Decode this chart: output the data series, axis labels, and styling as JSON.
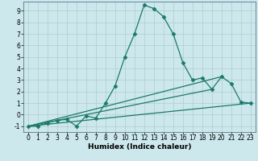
{
  "xlabel": "Humidex (Indice chaleur)",
  "line_color": "#1a7a6a",
  "bg_color": "#cce8ec",
  "grid_color": "#b0cccc",
  "lines": [
    {
      "x": [
        0,
        1,
        2,
        3,
        4,
        5,
        6,
        7,
        8,
        9,
        10,
        11,
        12,
        13,
        14,
        15,
        16,
        17,
        18,
        19,
        20,
        21,
        22,
        23
      ],
      "y": [
        -1,
        -1,
        -0.7,
        -0.5,
        -0.4,
        -1.0,
        -0.1,
        -0.3,
        1.0,
        2.5,
        5.0,
        7.0,
        9.5,
        9.2,
        8.5,
        7.0,
        4.5,
        3.0,
        3.2,
        2.2,
        3.3,
        2.7,
        1.1,
        1.0
      ],
      "has_markers": true
    },
    {
      "x": [
        0,
        23
      ],
      "y": [
        -1,
        1.0
      ],
      "has_markers": false
    },
    {
      "x": [
        0,
        19
      ],
      "y": [
        -1,
        2.2
      ],
      "has_markers": false
    },
    {
      "x": [
        0,
        20
      ],
      "y": [
        -1,
        3.3
      ],
      "has_markers": false
    }
  ],
  "xlim": [
    -0.5,
    23.5
  ],
  "ylim": [
    -1.5,
    9.8
  ],
  "yticks": [
    -1,
    0,
    1,
    2,
    3,
    4,
    5,
    6,
    7,
    8,
    9
  ],
  "xticks": [
    0,
    1,
    2,
    3,
    4,
    5,
    6,
    7,
    8,
    9,
    10,
    11,
    12,
    13,
    14,
    15,
    16,
    17,
    18,
    19,
    20,
    21,
    22,
    23
  ],
  "marker": "D",
  "marker_size": 2.5,
  "linewidth": 0.9,
  "tick_fontsize": 5.5,
  "xlabel_fontsize": 6.5
}
